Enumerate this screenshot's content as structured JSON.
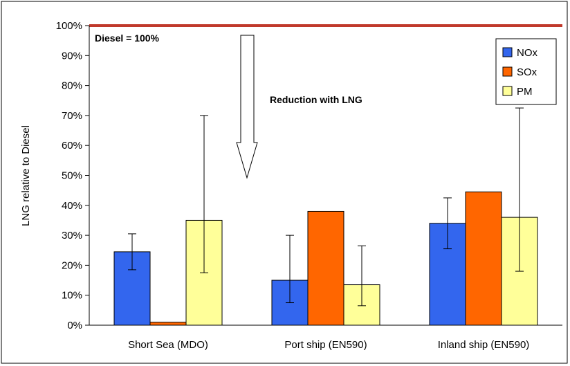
{
  "chart_data": {
    "type": "bar",
    "title": "",
    "xlabel": "",
    "ylabel": "LNG relative to Diesel",
    "ylim": [
      0,
      100
    ],
    "yticks": [
      "0%",
      "10%",
      "20%",
      "30%",
      "40%",
      "50%",
      "60%",
      "70%",
      "80%",
      "90%",
      "100%"
    ],
    "categories": [
      "Short Sea (MDO)",
      "Port ship (EN590)",
      "Inland ship (EN590)"
    ],
    "series": [
      {
        "name": "NOx",
        "color": "#3366ee",
        "values": [
          24.5,
          15,
          34
        ],
        "error_low": [
          18.5,
          7.5,
          25.5
        ],
        "error_high": [
          30.5,
          30,
          42.5
        ]
      },
      {
        "name": "SOx",
        "color": "#ff6600",
        "values": [
          1,
          38,
          44.5
        ],
        "error_low": [
          null,
          null,
          null
        ],
        "error_high": [
          null,
          null,
          null
        ]
      },
      {
        "name": "PM",
        "color": "#ffff99",
        "values": [
          35,
          13.5,
          36
        ],
        "error_low": [
          17.5,
          6.5,
          18
        ],
        "error_high": [
          70,
          26.5,
          72.5
        ]
      }
    ],
    "reference_line": {
      "value": 100,
      "label": "Diesel = 100%",
      "color": "#c0392b"
    },
    "annotation": "Reduction with LNG",
    "legend_position": "top-right",
    "grid": false
  }
}
